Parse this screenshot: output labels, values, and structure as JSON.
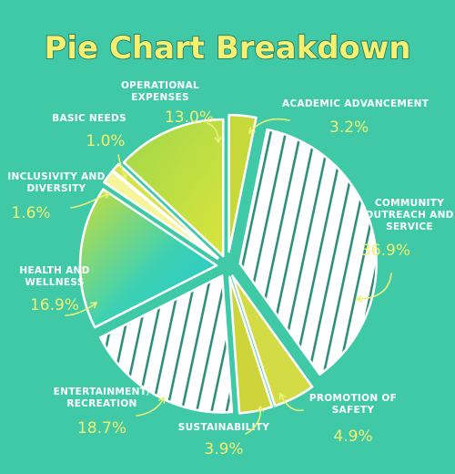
{
  "chart_data": {
    "type": "pie",
    "title": "Pie Chart Breakdown",
    "slices": [
      {
        "label_lines": [
          "ACADEMIC ADVANCEMENT"
        ],
        "pct_text": "3.2%",
        "value": 3.2,
        "fill": "#c8d93c",
        "pattern": "none"
      },
      {
        "label_lines": [
          "COMMUNITY",
          "OUTREACH AND",
          "SERVICE"
        ],
        "pct_text": "36.9%",
        "value": 36.9,
        "fill": "#ffffff",
        "pattern": "stripes"
      },
      {
        "label_lines": [
          "PROMOTION OF",
          "SAFETY"
        ],
        "pct_text": "4.9%",
        "value": 4.9,
        "fill": "#d3dc44",
        "pattern": "none"
      },
      {
        "label_lines": [
          "SUSTAINABILITY"
        ],
        "pct_text": "3.9%",
        "value": 3.9,
        "fill": "#cdd53a",
        "pattern": "none"
      },
      {
        "label_lines": [
          "ENTERTAINMENT/",
          "RECREATION"
        ],
        "pct_text": "18.7%",
        "value": 18.7,
        "fill": "#ffffff",
        "pattern": "stripes"
      },
      {
        "label_lines": [
          "HEALTH AND",
          "WELLNESS"
        ],
        "pct_text": "16.9%",
        "value": 16.9,
        "fill": "#2ad0c6",
        "pattern": "gradient"
      },
      {
        "label_lines": [
          "INCLUSIVITY AND",
          "DIVERSITY"
        ],
        "pct_text": "1.6%",
        "value": 1.6,
        "fill": "#f7f59c",
        "pattern": "none"
      },
      {
        "label_lines": [
          "BASIC NEEDS"
        ],
        "pct_text": "1.0%",
        "value": 1.0,
        "fill": "#d6e24a",
        "pattern": "none"
      },
      {
        "label_lines": [
          "OPERATIONAL",
          "EXPENSES"
        ],
        "pct_text": "13.0%",
        "value": 13.0,
        "fill": "#bfe04a",
        "pattern": "gradient2"
      }
    ]
  }
}
